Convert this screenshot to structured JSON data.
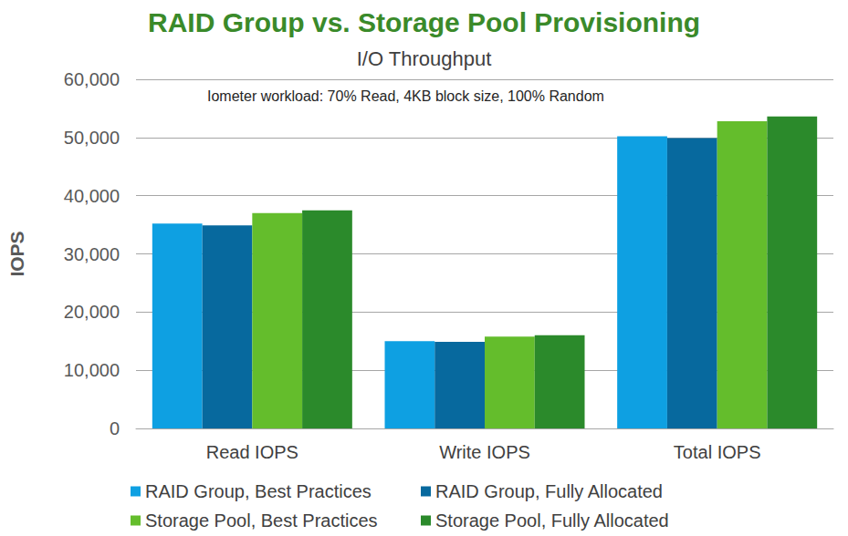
{
  "chart_data": {
    "type": "bar",
    "title": "RAID Group vs. Storage Pool Provisioning",
    "subtitle": "I/O Throughput",
    "annotation": "Iometer workload: 70% Read, 4KB block size, 100% Random",
    "y_label": "IOPS",
    "categories": [
      "Read IOPS",
      "Write IOPS",
      "Total IOPS"
    ],
    "series": [
      {
        "name": "RAID Group, Best Practices",
        "color": "#0ea0e2",
        "values": [
          35200,
          15000,
          50200
        ]
      },
      {
        "name": "RAID Group, Fully Allocated",
        "color": "#07699e",
        "values": [
          34900,
          14900,
          49900
        ]
      },
      {
        "name": "Storage Pool, Best Practices",
        "color": "#64bd2c",
        "values": [
          37000,
          15800,
          52800
        ]
      },
      {
        "name": "Storage Pool, Fully Allocated",
        "color": "#2b8a2b",
        "values": [
          37500,
          16000,
          53600
        ]
      }
    ],
    "ylim": [
      0,
      60000
    ],
    "yticks": [
      0,
      {
        "value": 10000,
        "label": "10,000"
      },
      {
        "value": 20000,
        "label": "20,000"
      },
      {
        "value": 30000,
        "label": "30,000"
      },
      {
        "value": 40000,
        "label": "40,000"
      },
      {
        "value": 50000,
        "label": "50,000"
      },
      {
        "value": 60000,
        "label": "60,000"
      }
    ],
    "grid": true,
    "legend": "bottom"
  }
}
